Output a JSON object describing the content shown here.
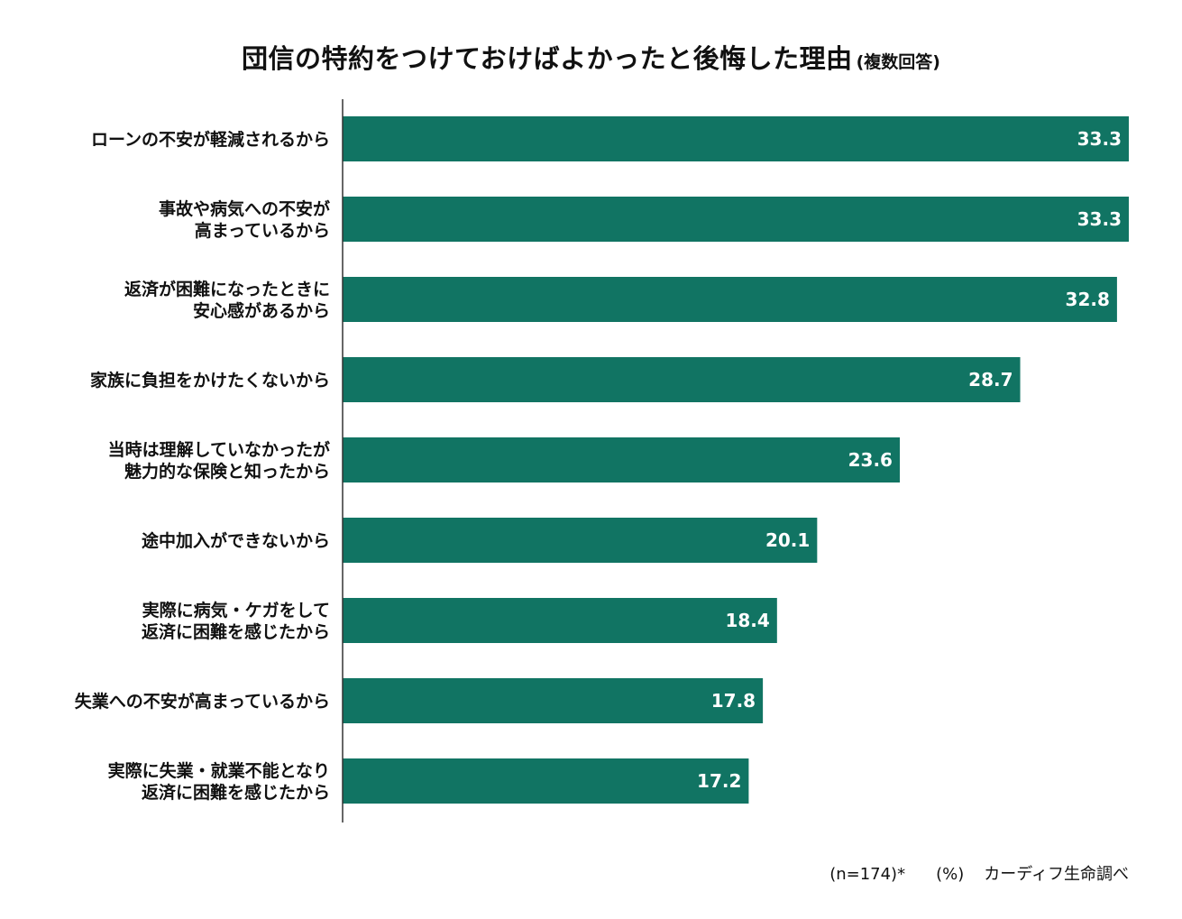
{
  "title": "団信の特約をつけておけばよかったと後悔した理由",
  "subtitle": "(複数回答)",
  "footer": {
    "sample": "(n=174)*",
    "unit": "(%)",
    "source": "カーディフ生命調べ"
  },
  "colors": {
    "bar": "#117463",
    "axis": "#333333",
    "value_text": "#ffffff"
  },
  "chart_data": {
    "type": "bar",
    "orientation": "horizontal",
    "categories": [
      [
        "ローンの不安が軽減されるから"
      ],
      [
        "事故や病気への不安が",
        "高まっているから"
      ],
      [
        "返済が困難になったときに",
        "安心感があるから"
      ],
      [
        "家族に負担をかけたくないから"
      ],
      [
        "当時は理解していなかったが",
        "魅力的な保険と知ったから"
      ],
      [
        "途中加入ができないから"
      ],
      [
        "実際に病気・ケガをして",
        "返済に困難を感じたから"
      ],
      [
        "失業への不安が高まっているから"
      ],
      [
        "実際に失業・就業不能となり",
        "返済に困難を感じたから"
      ]
    ],
    "values": [
      33.3,
      33.3,
      32.8,
      28.7,
      23.6,
      20.1,
      18.4,
      17.8,
      17.2
    ],
    "value_labels": [
      "33.3",
      "33.3",
      "32.8",
      "28.7",
      "23.6",
      "20.1",
      "18.4",
      "17.8",
      "17.2"
    ],
    "xlim": [
      0,
      33.3
    ],
    "unit": "%",
    "grid": false,
    "legend": "none"
  }
}
